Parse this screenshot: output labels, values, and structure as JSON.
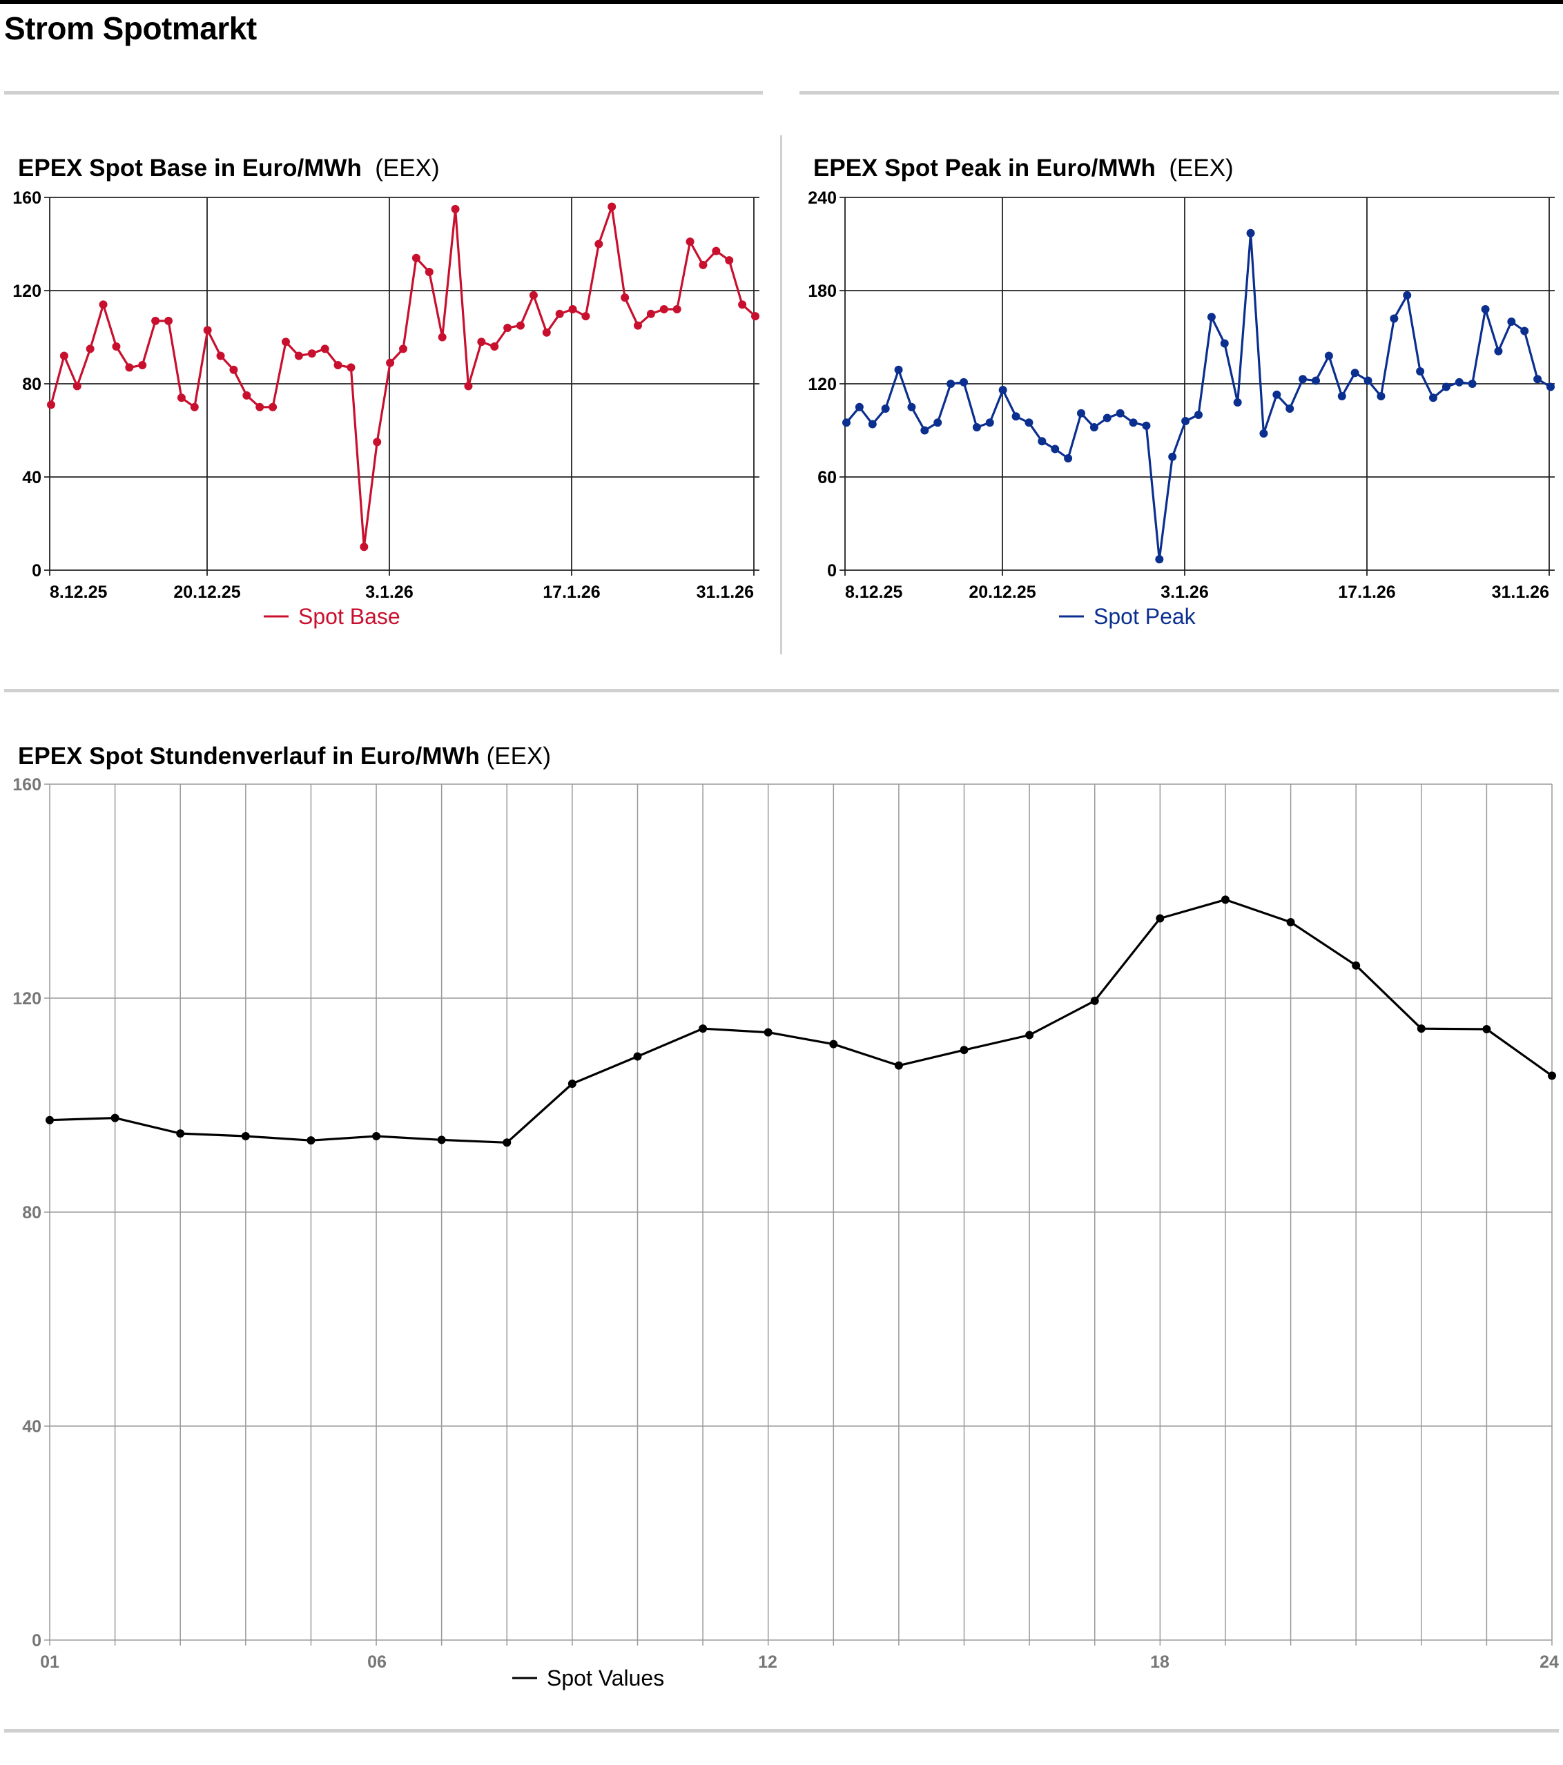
{
  "page": {
    "title": "Strom Spotmarkt"
  },
  "colors": {
    "base": "#c8102e",
    "peak": "#0b2f8f",
    "hourly": "#000000",
    "grid_dark": "#222222",
    "grid_light": "#9a9a9a",
    "rule": "#d0d0d0"
  },
  "chart_data": [
    {
      "id": "base",
      "type": "line",
      "title": "EPEX Spot Base in Euro/MWh",
      "source": "(EEX)",
      "ylim": [
        0,
        160
      ],
      "yticks": [
        "0",
        "40",
        "80",
        "120",
        "160"
      ],
      "xtick_labels": [
        "8.12.25",
        "20.12.25",
        "3.1.26",
        "17.1.26",
        "31.1.26"
      ],
      "grid": true,
      "legend_position": "bottom-center",
      "series": [
        {
          "name": "Spot Base",
          "color": "#c8102e",
          "values": [
            71,
            92,
            79,
            95,
            114,
            96,
            87,
            88,
            107,
            107,
            74,
            70,
            103,
            92,
            86,
            75,
            70,
            70,
            98,
            92,
            93,
            95,
            88,
            87,
            10,
            55,
            89,
            95,
            134,
            128,
            100,
            155,
            79,
            98,
            96,
            104,
            105,
            118,
            102,
            110,
            112,
            109,
            140,
            156,
            117,
            105,
            110,
            112,
            112,
            141,
            131,
            137,
            133,
            114,
            109
          ]
        }
      ]
    },
    {
      "id": "peak",
      "type": "line",
      "title": "EPEX Spot Peak in Euro/MWh",
      "source": "(EEX)",
      "ylim": [
        0,
        240
      ],
      "yticks": [
        "0",
        "60",
        "120",
        "180",
        "240"
      ],
      "xtick_labels": [
        "8.12.25",
        "20.12.25",
        "3.1.26",
        "17.1.26",
        "31.1.26"
      ],
      "grid": true,
      "legend_position": "bottom-center",
      "series": [
        {
          "name": "Spot Peak",
          "color": "#0b2f8f",
          "values": [
            95,
            105,
            94,
            104,
            129,
            105,
            90,
            95,
            120,
            121,
            92,
            95,
            116,
            99,
            95,
            83,
            78,
            72,
            101,
            92,
            98,
            101,
            95,
            93,
            7,
            73,
            96,
            100,
            163,
            146,
            108,
            217,
            88,
            113,
            104,
            123,
            122,
            138,
            112,
            127,
            122,
            112,
            162,
            177,
            128,
            111,
            118,
            121,
            120,
            168,
            141,
            160,
            154,
            123,
            118
          ]
        }
      ]
    },
    {
      "id": "hourly",
      "type": "line",
      "title": "EPEX Spot Stundenverlauf in Euro/MWh",
      "source": "(EEX)",
      "ylim": [
        0,
        160
      ],
      "yticks": [
        "0",
        "40",
        "80",
        "120",
        "160"
      ],
      "xtick_labels": [
        "01",
        "06",
        "12",
        "18",
        "24"
      ],
      "grid": true,
      "legend_position": "bottom-center",
      "series": [
        {
          "name": "Spot Values",
          "color": "#000000",
          "values": [
            97.2,
            97.6,
            94.7,
            94.2,
            93.4,
            94.2,
            93.5,
            93.0,
            104.0,
            109.1,
            114.3,
            113.6,
            111.4,
            107.4,
            110.3,
            113.1,
            119.5,
            134.9,
            138.4,
            134.2,
            126.1,
            114.3,
            114.2,
            105.5
          ]
        }
      ]
    }
  ]
}
